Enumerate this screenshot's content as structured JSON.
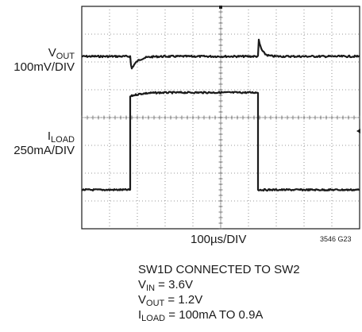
{
  "chart_data": {
    "type": "line",
    "title": "",
    "x_division_label": "100µs/DIV",
    "x_divisions": 10,
    "y_divisions": 8,
    "figure_id": "3546 G23",
    "channels": [
      {
        "name_main": "V",
        "name_sub": "OUT",
        "scale": "100mV/DIV",
        "baseline_div": 1.8,
        "events": [
          {
            "time_div": 1.75,
            "type": "undershoot",
            "depth_div": 0.55
          },
          {
            "time_div": 6.35,
            "type": "overshoot",
            "height_div": 0.7
          }
        ]
      },
      {
        "name_main": "I",
        "name_sub": "LOAD",
        "scale": "250mA/DIV",
        "low_div": 6.6,
        "high_div": 3.1,
        "step_up_div": 1.75,
        "step_down_div": 6.35
      }
    ]
  },
  "conditions": [
    {
      "main": "SW1D CONNECTED TO SW2",
      "sub": "",
      "rest": ""
    },
    {
      "main": "V",
      "sub": "IN",
      "rest": " = 3.6V"
    },
    {
      "main": "V",
      "sub": "OUT",
      "rest": " = 1.2V"
    },
    {
      "main": "I",
      "sub": "LOAD",
      "rest": " = 100mA TO 0.9A"
    }
  ]
}
